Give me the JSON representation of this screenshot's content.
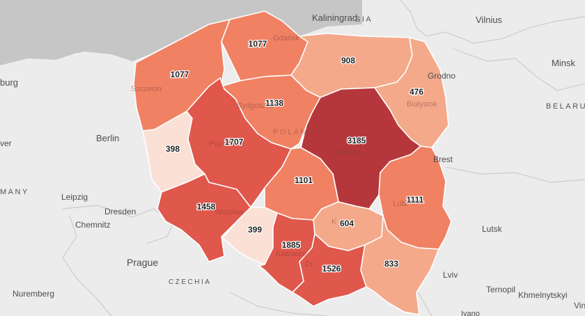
{
  "colors": {
    "sea": "#c6c6c6",
    "land": "#ececec",
    "border": "#cfcfcf",
    "scale": [
      "#fbe0d6",
      "#f4a98b",
      "#f08163",
      "#e0574c",
      "#b5373b"
    ]
  },
  "countries": {
    "belarus": "BELARU",
    "germany": "MANY",
    "poland": "POLAND",
    "czechia": "CZECHIA",
    "russia": "SIA"
  },
  "cities": {
    "kaliningrad": "Kaliningrad",
    "vilnius": "Vilnius",
    "minsk": "Minsk",
    "hamburg": "burg",
    "berlin": "Berlin",
    "hanover": "ver",
    "grodno": "Grodno",
    "brest": "Brest",
    "leipzig": "Leipzig",
    "dresden": "Dresden",
    "chemnitz": "Chemnitz",
    "prague": "Prague",
    "nuremberg": "Nuremberg",
    "lutsk": "Lutsk",
    "lviv": "Lviv",
    "ternopil": "Ternopil",
    "khmelnytskyi": "Khmelnytskyi",
    "ivano": "Ivano",
    "vin": "Vin",
    "gdansk": "Gdańsk",
    "szczecin": "Szczecin",
    "bydgoszcz": "Bydgoszcz",
    "bialystok": "Białystok",
    "poznan": "Poz",
    "warsaw": "Warsaw",
    "lublin": "Lubl",
    "wroclaw": "Wrocław",
    "katowice": "Katowice",
    "krakow": "Cr",
    "kielce": "K"
  },
  "regions": [
    {
      "id": "pomorskie",
      "value": "1077",
      "level": 2
    },
    {
      "id": "zachodniopomorskie",
      "value": "1077",
      "level": 2
    },
    {
      "id": "warminsko-mazurskie",
      "value": "908",
      "level": 1
    },
    {
      "id": "podlaskie",
      "value": "476",
      "level": 1
    },
    {
      "id": "kujawsko-pomorskie",
      "value": "1138",
      "level": 2
    },
    {
      "id": "lubuskie",
      "value": "398",
      "level": 0
    },
    {
      "id": "wielkopolskie",
      "value": "1707",
      "level": 3
    },
    {
      "id": "mazowieckie",
      "value": "3185",
      "level": 4
    },
    {
      "id": "lodzkie",
      "value": "1101",
      "level": 2
    },
    {
      "id": "lubelskie",
      "value": "1111",
      "level": 2
    },
    {
      "id": "dolnoslaskie",
      "value": "1458",
      "level": 3
    },
    {
      "id": "opolskie",
      "value": "399",
      "level": 0
    },
    {
      "id": "swietokrzyskie",
      "value": "604",
      "level": 1
    },
    {
      "id": "slaskie",
      "value": "1885",
      "level": 3
    },
    {
      "id": "malopolskie",
      "value": "1526",
      "level": 3
    },
    {
      "id": "podkarpackie",
      "value": "833",
      "level": 1
    }
  ]
}
